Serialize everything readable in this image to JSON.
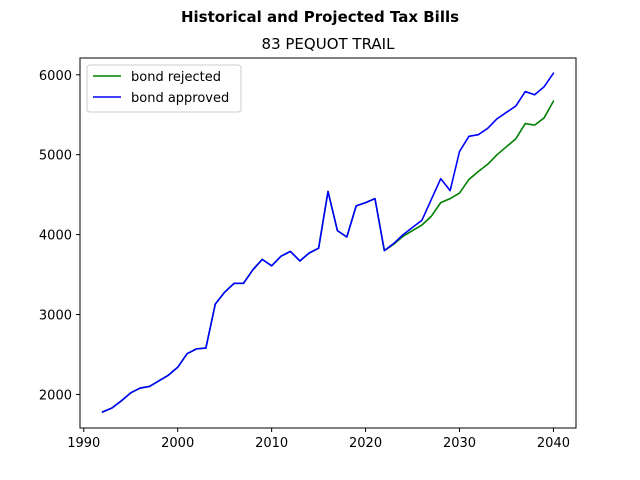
{
  "chart_data": {
    "type": "line",
    "suptitle": "Historical and Projected Tax Bills",
    "title": "83 PEQUOT TRAIL",
    "xlabel": "",
    "ylabel": "",
    "xlim": [
      1989.6,
      2042.4
    ],
    "ylim": [
      1580,
      6210
    ],
    "xticks": [
      1990,
      2000,
      2010,
      2020,
      2030,
      2040
    ],
    "yticks": [
      2000,
      3000,
      4000,
      5000,
      6000
    ],
    "grid": false,
    "legend_position": "upper left",
    "series": [
      {
        "name": "bond rejected",
        "color": "#008000",
        "x": [
          1992,
          1993,
          1994,
          1995,
          1996,
          1997,
          1998,
          1999,
          2000,
          2001,
          2002,
          2003,
          2004,
          2005,
          2006,
          2007,
          2008,
          2009,
          2010,
          2011,
          2012,
          2013,
          2014,
          2015,
          2016,
          2017,
          2018,
          2019,
          2020,
          2021,
          2022,
          2023,
          2024,
          2025,
          2026,
          2027,
          2028,
          2029,
          2030,
          2031,
          2032,
          2033,
          2034,
          2035,
          2036,
          2037,
          2038,
          2039,
          2040
        ],
        "y": [
          1780,
          1830,
          1920,
          2020,
          2080,
          2100,
          2170,
          2240,
          2340,
          2510,
          2570,
          2580,
          3130,
          3280,
          3390,
          3390,
          3560,
          3690,
          3610,
          3730,
          3790,
          3670,
          3770,
          3830,
          4540,
          4050,
          3970,
          4360,
          4400,
          4450,
          3800,
          3880,
          3980,
          4050,
          4120,
          4230,
          4400,
          4450,
          4520,
          4690,
          4790,
          4880,
          5000,
          5100,
          5200,
          5390,
          5370,
          5460,
          5670
        ]
      },
      {
        "name": "bond approved",
        "color": "#0000ff",
        "x": [
          1992,
          1993,
          1994,
          1995,
          1996,
          1997,
          1998,
          1999,
          2000,
          2001,
          2002,
          2003,
          2004,
          2005,
          2006,
          2007,
          2008,
          2009,
          2010,
          2011,
          2012,
          2013,
          2014,
          2015,
          2016,
          2017,
          2018,
          2019,
          2020,
          2021,
          2022,
          2023,
          2024,
          2025,
          2026,
          2027,
          2028,
          2029,
          2030,
          2031,
          2032,
          2033,
          2034,
          2035,
          2036,
          2037,
          2038,
          2039,
          2040
        ],
        "y": [
          1780,
          1830,
          1920,
          2020,
          2080,
          2100,
          2170,
          2240,
          2340,
          2510,
          2570,
          2580,
          3130,
          3280,
          3390,
          3390,
          3560,
          3690,
          3610,
          3730,
          3790,
          3670,
          3770,
          3830,
          4540,
          4050,
          3970,
          4360,
          4400,
          4450,
          3800,
          3890,
          4000,
          4090,
          4180,
          4440,
          4700,
          4550,
          5040,
          5230,
          5250,
          5330,
          5450,
          5530,
          5610,
          5790,
          5750,
          5850,
          6020
        ]
      }
    ]
  }
}
